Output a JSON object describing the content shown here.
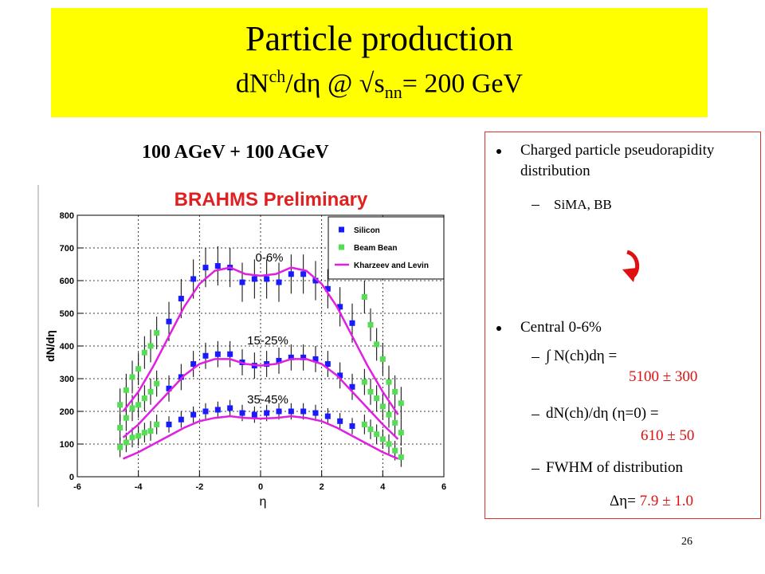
{
  "header": {
    "title": "Particle production",
    "subtitle_parts": [
      "dN",
      "ch",
      "/dη @ √s",
      "nn",
      "= 200 GeV"
    ]
  },
  "beam_label": "100 AGeV + 100 AGeV",
  "chart_data": {
    "type": "scatter",
    "title": "BRAHMS Preliminary",
    "x_label": "η",
    "y_label": "dN/dη",
    "xlim": [
      -6,
      6
    ],
    "xticks": [
      -6,
      -4,
      -2,
      0,
      2,
      4,
      6
    ],
    "ylim": [
      0,
      800
    ],
    "yticks": [
      0,
      100,
      200,
      300,
      400,
      500,
      600,
      700,
      800
    ],
    "grid": true,
    "legend": "upper right",
    "annotations": [
      "0-6%",
      "15-25%",
      "35-45%"
    ],
    "series": [
      {
        "name": "Silicon",
        "color": "#1a1aff",
        "marker": "square",
        "x": [
          -3.0,
          -2.6,
          -2.2,
          -1.8,
          -1.4,
          -1.0,
          -0.6,
          -0.2,
          0.2,
          0.6,
          1.0,
          1.4,
          1.8,
          2.2,
          2.6,
          3.0,
          -3.0,
          -2.6,
          -2.2,
          -1.8,
          -1.4,
          -1.0,
          -0.6,
          -0.2,
          0.2,
          0.6,
          1.0,
          1.4,
          1.8,
          2.2,
          2.6,
          3.0,
          -3.0,
          -2.6,
          -2.2,
          -1.8,
          -1.4,
          -1.0,
          -0.6,
          -0.2,
          0.2,
          0.6,
          1.0,
          1.4,
          1.8,
          2.2,
          2.6,
          3.0
        ],
        "values": [
          475,
          545,
          605,
          640,
          645,
          640,
          595,
          605,
          605,
          595,
          620,
          620,
          600,
          575,
          520,
          470,
          270,
          305,
          345,
          370,
          375,
          375,
          350,
          340,
          345,
          355,
          365,
          365,
          360,
          345,
          310,
          275,
          160,
          175,
          190,
          200,
          205,
          210,
          195,
          190,
          195,
          200,
          200,
          200,
          195,
          185,
          170,
          155
        ],
        "errors": [
          60,
          60,
          60,
          60,
          60,
          60,
          60,
          60,
          60,
          60,
          60,
          60,
          60,
          60,
          60,
          60,
          40,
          40,
          40,
          40,
          40,
          40,
          40,
          40,
          40,
          40,
          40,
          40,
          40,
          40,
          40,
          40,
          25,
          25,
          25,
          25,
          25,
          25,
          25,
          25,
          25,
          25,
          25,
          25,
          25,
          25,
          25,
          25
        ]
      },
      {
        "name": "Beam Bean",
        "color": "#55dd55",
        "marker": "square",
        "x": [
          -4.6,
          -4.4,
          -4.2,
          -4.0,
          -3.8,
          -3.6,
          -3.4,
          3.4,
          3.6,
          3.8,
          4.0,
          4.2,
          4.4,
          4.6,
          -4.6,
          -4.4,
          -4.2,
          -4.0,
          -3.8,
          -3.6,
          -3.4,
          3.4,
          3.6,
          3.8,
          4.0,
          4.2,
          4.4,
          4.6,
          -4.6,
          -4.4,
          -4.2,
          -4.0,
          -3.8,
          -3.6,
          -3.4,
          3.4,
          3.6,
          3.8,
          4.0,
          4.2,
          4.4,
          4.6
        ],
        "values": [
          220,
          265,
          305,
          330,
          380,
          400,
          440,
          550,
          465,
          405,
          360,
          290,
          260,
          225,
          150,
          180,
          210,
          220,
          240,
          260,
          285,
          290,
          260,
          240,
          215,
          190,
          165,
          135,
          90,
          105,
          120,
          125,
          135,
          140,
          160,
          160,
          145,
          130,
          115,
          100,
          80,
          60
        ],
        "errors": [
          50,
          50,
          50,
          50,
          50,
          50,
          50,
          50,
          50,
          50,
          50,
          50,
          50,
          50,
          40,
          40,
          40,
          40,
          40,
          40,
          40,
          40,
          40,
          40,
          40,
          40,
          40,
          40,
          30,
          30,
          30,
          30,
          30,
          30,
          30,
          30,
          30,
          30,
          30,
          30,
          30,
          30
        ]
      },
      {
        "name": "Kharzeev and Levin",
        "color": "#e020e0",
        "marker": "line",
        "x": [
          -4.5,
          -4,
          -3.5,
          -3,
          -2.5,
          -2,
          -1.5,
          -1,
          -0.5,
          0,
          0.5,
          1,
          1.5,
          2,
          2.5,
          3,
          3.5,
          4,
          4.5,
          null,
          -4.5,
          -4,
          -3.5,
          -3,
          -2.5,
          -2,
          -1.5,
          -1,
          -0.5,
          0,
          0.5,
          1,
          1.5,
          2,
          2.5,
          3,
          3.5,
          4,
          4.5,
          null,
          -4.5,
          -4,
          -3.5,
          -3,
          -2.5,
          -2,
          -1.5,
          -1,
          -0.5,
          0,
          0.5,
          1,
          1.5,
          2,
          2.5,
          3,
          3.5,
          4,
          4.5
        ],
        "values": [
          200,
          260,
          340,
          430,
          520,
          590,
          630,
          640,
          620,
          615,
          620,
          640,
          630,
          590,
          520,
          430,
          340,
          260,
          190,
          null,
          120,
          160,
          210,
          260,
          310,
          345,
          360,
          360,
          345,
          340,
          345,
          360,
          360,
          345,
          310,
          260,
          210,
          160,
          115,
          null,
          55,
          75,
          100,
          125,
          150,
          170,
          180,
          185,
          180,
          178,
          180,
          185,
          180,
          170,
          150,
          125,
          100,
          75,
          55
        ]
      }
    ]
  },
  "bullets": [
    {
      "text": "Charged particle pseudorapidity distribution",
      "sub": [
        {
          "text": "SiMA, BB"
        }
      ]
    },
    {
      "text": "Central 0-6%",
      "sub": [
        {
          "text": "∫ N(ch)dη =",
          "value": "5100 ± 300"
        },
        {
          "text": "dN(ch)/dη (η=0) =",
          "value": "610 ± 50"
        },
        {
          "text": "FWHM of distribution"
        }
      ]
    }
  ],
  "fwhm": {
    "label": "Δη=",
    "value": "7.9 ± 1.0"
  },
  "page_number": "26"
}
